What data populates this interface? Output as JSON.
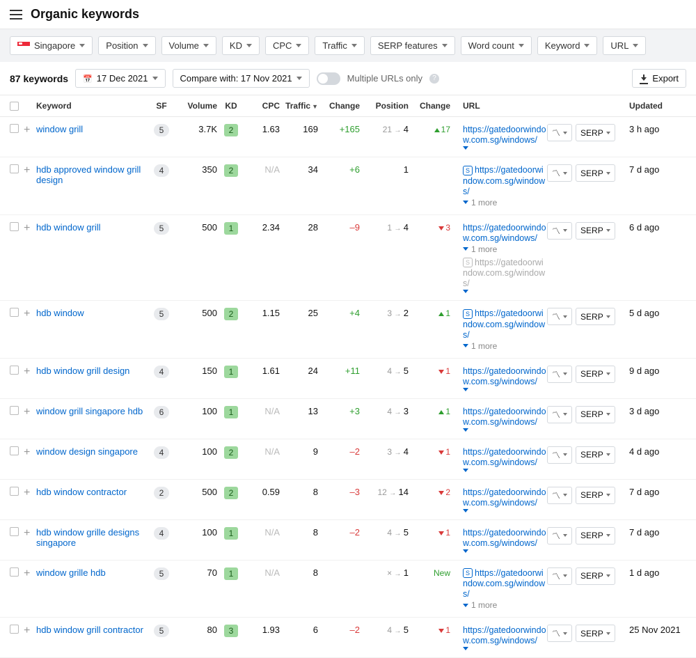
{
  "page": {
    "title": "Organic keywords"
  },
  "filters": {
    "country": "Singapore",
    "items": [
      "Position",
      "Volume",
      "KD",
      "CPC",
      "Traffic",
      "SERP features",
      "Word count",
      "Keyword",
      "URL"
    ]
  },
  "toolbar": {
    "count_label": "87 keywords",
    "date": "17 Dec 2021",
    "compare": "Compare with: 17 Nov 2021",
    "multi_urls": "Multiple URLs only",
    "export": "Export"
  },
  "columns": {
    "keyword": "Keyword",
    "sf": "SF",
    "volume": "Volume",
    "kd": "KD",
    "cpc": "CPC",
    "traffic": "Traffic",
    "change1": "Change",
    "position": "Position",
    "change2": "Change",
    "url": "URL",
    "updated": "Updated"
  },
  "rows": [
    {
      "kw": "window grill",
      "sf": "5",
      "vol": "3.7K",
      "kd": "2",
      "cpc": "1.63",
      "traffic": "169",
      "tchange": "+165",
      "tdir": "up",
      "pos_from": "21",
      "pos_to": "4",
      "pchange": "17",
      "pdir": "up",
      "url": "https://gatedoorwindow.com.sg/windows/",
      "url_more": "",
      "url_icon": false,
      "updated": "3 h ago"
    },
    {
      "kw": "hdb approved window grill design",
      "sf": "4",
      "vol": "350",
      "kd": "2",
      "cpc": "N/A",
      "traffic": "34",
      "tchange": "+6",
      "tdir": "up",
      "pos_from": "",
      "pos_to": "1",
      "pchange": "",
      "pdir": "",
      "url": "https://gatedoorwindow.com.sg/windows/",
      "url_more": "1 more",
      "url_icon": true,
      "updated": "7 d ago"
    },
    {
      "kw": "hdb window grill",
      "sf": "5",
      "vol": "500",
      "kd": "1",
      "cpc": "2.34",
      "traffic": "28",
      "tchange": "–9",
      "tdir": "down",
      "pos_from": "1",
      "pos_to": "4",
      "pchange": "3",
      "pdir": "down",
      "url": "https://gatedoorwindow.com.sg/windows/",
      "url_more": "1 more",
      "url_icon": false,
      "url2": "https://gatedoorwindow.com.sg/windows/",
      "updated": "6 d ago"
    },
    {
      "kw": "hdb window",
      "sf": "5",
      "vol": "500",
      "kd": "2",
      "cpc": "1.15",
      "traffic": "25",
      "tchange": "+4",
      "tdir": "up",
      "pos_from": "3",
      "pos_to": "2",
      "pchange": "1",
      "pdir": "up",
      "url": "https://gatedoorwindow.com.sg/windows/",
      "url_more": "1 more",
      "url_icon": true,
      "updated": "5 d ago"
    },
    {
      "kw": "hdb window grill design",
      "sf": "4",
      "vol": "150",
      "kd": "1",
      "cpc": "1.61",
      "traffic": "24",
      "tchange": "+11",
      "tdir": "up",
      "pos_from": "4",
      "pos_to": "5",
      "pchange": "1",
      "pdir": "down",
      "url": "https://gatedoorwindow.com.sg/windows/",
      "url_more": "",
      "url_icon": false,
      "updated": "9 d ago"
    },
    {
      "kw": "window grill singapore hdb",
      "sf": "6",
      "vol": "100",
      "kd": "1",
      "cpc": "N/A",
      "traffic": "13",
      "tchange": "+3",
      "tdir": "up",
      "pos_from": "4",
      "pos_to": "3",
      "pchange": "1",
      "pdir": "up",
      "url": "https://gatedoorwindow.com.sg/windows/",
      "url_more": "",
      "url_icon": false,
      "updated": "3 d ago"
    },
    {
      "kw": "window design singapore",
      "sf": "4",
      "vol": "100",
      "kd": "2",
      "cpc": "N/A",
      "traffic": "9",
      "tchange": "–2",
      "tdir": "down",
      "pos_from": "3",
      "pos_to": "4",
      "pchange": "1",
      "pdir": "down",
      "url": "https://gatedoorwindow.com.sg/windows/",
      "url_more": "",
      "url_icon": false,
      "updated": "4 d ago"
    },
    {
      "kw": "hdb window contractor",
      "sf": "2",
      "vol": "500",
      "kd": "2",
      "cpc": "0.59",
      "traffic": "8",
      "tchange": "–3",
      "tdir": "down",
      "pos_from": "12",
      "pos_to": "14",
      "pchange": "2",
      "pdir": "down",
      "url": "https://gatedoorwindow.com.sg/windows/",
      "url_more": "",
      "url_icon": false,
      "updated": "7 d ago"
    },
    {
      "kw": "hdb window grille designs singapore",
      "sf": "4",
      "vol": "100",
      "kd": "1",
      "cpc": "N/A",
      "traffic": "8",
      "tchange": "–2",
      "tdir": "down",
      "pos_from": "4",
      "pos_to": "5",
      "pchange": "1",
      "pdir": "down",
      "url": "https://gatedoorwindow.com.sg/windows/",
      "url_more": "",
      "url_icon": false,
      "updated": "7 d ago"
    },
    {
      "kw": "window grille hdb",
      "sf": "5",
      "vol": "70",
      "kd": "1",
      "cpc": "N/A",
      "traffic": "8",
      "tchange": "",
      "tdir": "",
      "pos_from": "×",
      "pos_to": "1",
      "pchange": "New",
      "pdir": "new",
      "url": "https://gatedoorwindow.com.sg/windows/",
      "url_more": "1 more",
      "url_icon": true,
      "updated": "1 d ago"
    },
    {
      "kw": "hdb window grill contractor",
      "sf": "5",
      "vol": "80",
      "kd": "3",
      "cpc": "1.93",
      "traffic": "6",
      "tchange": "–2",
      "tdir": "down",
      "pos_from": "4",
      "pos_to": "5",
      "pchange": "1",
      "pdir": "down",
      "url": "https://gatedoorwindow.com.sg/windows/",
      "url_more": "",
      "url_icon": false,
      "updated": "25 Nov 2021"
    }
  ],
  "actions": {
    "serp": "SERP"
  }
}
